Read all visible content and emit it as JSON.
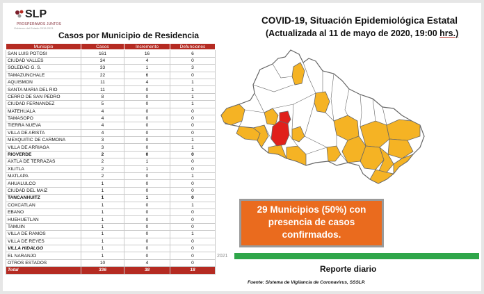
{
  "logo": {
    "text": "SLP",
    "tagline": "PROSPERAMOS JUNTOS",
    "subline": "Gobierno del Estado 2015-2021"
  },
  "table": {
    "title": "Casos por Municipio de Residencia",
    "headers": [
      "Municipio",
      "Casos",
      "Incremento",
      "Defunciones"
    ],
    "rows": [
      {
        "municipio": "SAN LUIS POTOSI",
        "casos": "161",
        "incremento": "16",
        "defunciones": "6"
      },
      {
        "municipio": "CIUDAD VALLES",
        "casos": "34",
        "incremento": "4",
        "defunciones": "0"
      },
      {
        "municipio": "SOLEDAD G. S.",
        "casos": "33",
        "incremento": "1",
        "defunciones": "3"
      },
      {
        "municipio": "TAMAZUNCHALE",
        "casos": "22",
        "incremento": "6",
        "defunciones": "0"
      },
      {
        "municipio": "AQUISMON",
        "casos": "11",
        "incremento": "4",
        "defunciones": "1"
      },
      {
        "municipio": "SANTA MARIA DEL RIO",
        "casos": "11",
        "incremento": "0",
        "defunciones": "1"
      },
      {
        "municipio": "CERRO DE SAN PEDRO",
        "casos": "8",
        "incremento": "0",
        "defunciones": "1"
      },
      {
        "municipio": "CIUDAD FERNANDEZ",
        "casos": "5",
        "incremento": "0",
        "defunciones": "1"
      },
      {
        "municipio": "MATEHUALA",
        "casos": "4",
        "incremento": "0",
        "defunciones": "0"
      },
      {
        "municipio": "TAMASOPO",
        "casos": "4",
        "incremento": "0",
        "defunciones": "0"
      },
      {
        "municipio": "TIERRA NUEVA",
        "casos": "4",
        "incremento": "0",
        "defunciones": "0"
      },
      {
        "municipio": "VILLA DE ARISTA",
        "casos": "4",
        "incremento": "0",
        "defunciones": "0"
      },
      {
        "municipio": "MEXQUITIC DE CARMONA",
        "casos": "3",
        "incremento": "0",
        "defunciones": "1"
      },
      {
        "municipio": "VILLA DE ARRIAGA",
        "casos": "3",
        "incremento": "0",
        "defunciones": "1"
      },
      {
        "municipio": "RIOVERDE",
        "casos": "2",
        "incremento": "0",
        "defunciones": "0",
        "style": "bold"
      },
      {
        "municipio": "AXTLA DE TERRAZAS",
        "casos": "2",
        "incremento": "1",
        "defunciones": "0"
      },
      {
        "municipio": "XILITLA",
        "casos": "2",
        "incremento": "1",
        "defunciones": "0"
      },
      {
        "municipio": "MATLAPA",
        "casos": "2",
        "incremento": "0",
        "defunciones": "1"
      },
      {
        "municipio": "AHUALULCO",
        "casos": "1",
        "incremento": "0",
        "defunciones": "0"
      },
      {
        "municipio": "CIUDAD DEL MAIZ",
        "casos": "1",
        "incremento": "0",
        "defunciones": "0"
      },
      {
        "municipio": "TANCANHUITZ",
        "casos": "1",
        "incremento": "1",
        "defunciones": "0",
        "style": "bold"
      },
      {
        "municipio": "COXCATLAN",
        "casos": "1",
        "incremento": "0",
        "defunciones": "1"
      },
      {
        "municipio": "EBANO",
        "casos": "1",
        "incremento": "0",
        "defunciones": "0"
      },
      {
        "municipio": "HUEHUETLAN",
        "casos": "1",
        "incremento": "0",
        "defunciones": "0"
      },
      {
        "municipio": "TAMUIN",
        "casos": "1",
        "incremento": "0",
        "defunciones": "0"
      },
      {
        "municipio": "VILLA DE RAMOS",
        "casos": "1",
        "incremento": "0",
        "defunciones": "1"
      },
      {
        "municipio": "VILLA DE REYES",
        "casos": "1",
        "incremento": "0",
        "defunciones": "0"
      },
      {
        "municipio": "VILLA HIDALGO",
        "casos": "1",
        "incremento": "0",
        "defunciones": "0",
        "style": "ital"
      },
      {
        "municipio": "EL NARANJO",
        "casos": "1",
        "incremento": "0",
        "defunciones": "0"
      },
      {
        "municipio": "OTROS ESTADOS",
        "casos": "10",
        "incremento": "4",
        "defunciones": "0"
      }
    ],
    "total": {
      "municipio": "Total",
      "casos": "336",
      "incremento": "38",
      "defunciones": "18"
    }
  },
  "header": {
    "title": "COVID-19, Situación Epidemiológica Estatal",
    "subtitle_prefix": "(Actualizada al 11 de mayo de 2020, 19:00 ",
    "subtitle_underlined": "hrs.)"
  },
  "map": {
    "colors": {
      "no_cases": "#ffffff",
      "with_cases": "#f5b324",
      "high": "#e0201b",
      "border": "#666666"
    }
  },
  "callout": {
    "lines": [
      "29 Municipios (50%) con",
      "presencia de casos",
      "confirmados."
    ],
    "color": "#ea6b1e"
  },
  "footer": {
    "year": "2021",
    "daily_report": "Reporte diario",
    "source": "Fuente: Sistema de Vigilancia de Coronavirus, SSSLP.",
    "bar_color": "#2fa64a"
  }
}
